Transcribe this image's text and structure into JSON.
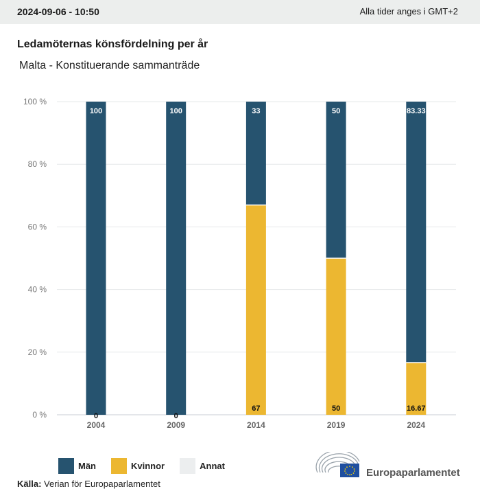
{
  "header": {
    "timestamp": "2024-09-06 - 10:50",
    "timezone_note": "Alla tider anges i GMT+2"
  },
  "chart_data": {
    "type": "bar",
    "stacked": true,
    "title": "Ledamöternas könsfördelning per år",
    "subtitle": "Malta - Konstituerande sammanträde",
    "categories": [
      "2004",
      "2009",
      "2014",
      "2019",
      "2024"
    ],
    "series": [
      {
        "name": "Kvinnor",
        "color": "#ecb731",
        "values": [
          0,
          0,
          67,
          50,
          16.67
        ],
        "labels": [
          "0",
          "0",
          "67",
          "50",
          "16.67"
        ]
      },
      {
        "name": "Män",
        "color": "#26536f",
        "values": [
          100,
          100,
          33,
          50,
          83.33
        ],
        "labels": [
          "100",
          "100",
          "33",
          "50",
          "83.33"
        ]
      },
      {
        "name": "Annat",
        "color": "#eceeef",
        "values": [
          0,
          0,
          0,
          0,
          0
        ],
        "labels": []
      }
    ],
    "xlabel": "",
    "ylabel": "",
    "ylim": [
      0,
      100
    ],
    "yticks": [
      0,
      20,
      40,
      60,
      80,
      100
    ],
    "ytick_labels": [
      "0 %",
      "20 %",
      "40 %",
      "60 %",
      "80 %",
      "100 %"
    ],
    "grid": true,
    "legend": {
      "position": "bottom-left",
      "entries": [
        {
          "label": "Män",
          "color": "#26536f"
        },
        {
          "label": "Kvinnor",
          "color": "#ecb731"
        },
        {
          "label": "Annat",
          "color": "#eceeef"
        }
      ]
    }
  },
  "footer": {
    "source_label": "Källa:",
    "source_text": "Verian för Europaparlamentet",
    "logo_text": "Europaparlamentet"
  }
}
